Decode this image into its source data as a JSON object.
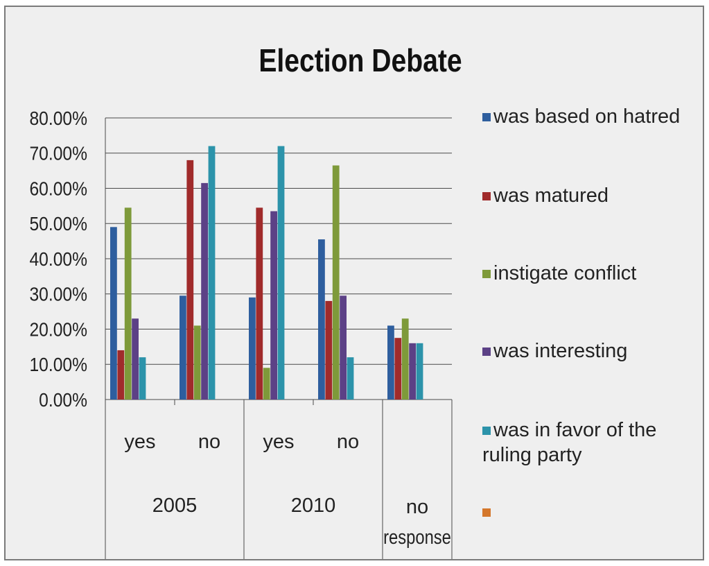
{
  "chart_data": {
    "type": "bar",
    "title": "Election Debate",
    "xlabel": "",
    "ylabel": "",
    "ylim": [
      0,
      0.8
    ],
    "yticks": [
      "0.00%",
      "10.00%",
      "20.00%",
      "30.00%",
      "40.00%",
      "50.00%",
      "60.00%",
      "70.00%",
      "80.00%"
    ],
    "grid": true,
    "legend_position": "right",
    "categories": [
      {
        "sub": "yes",
        "group": "2005"
      },
      {
        "sub": "no",
        "group": "2005"
      },
      {
        "sub": "yes",
        "group": "2010"
      },
      {
        "sub": "no",
        "group": "2010"
      },
      {
        "sub": "",
        "group": "no response"
      }
    ],
    "groups": [
      "2005",
      "2010",
      "no response"
    ],
    "series": [
      {
        "name": "was based on hatred",
        "color": "#2e5e9e",
        "values": [
          0.49,
          0.295,
          0.29,
          0.455,
          0.21
        ]
      },
      {
        "name": "was matured",
        "color": "#a02b2b",
        "values": [
          0.14,
          0.68,
          0.545,
          0.28,
          0.175
        ]
      },
      {
        "name": "instigate conflict",
        "color": "#7e9a3a",
        "values": [
          0.545,
          0.21,
          0.09,
          0.665,
          0.23
        ]
      },
      {
        "name": "was interesting",
        "color": "#5c4186",
        "values": [
          0.23,
          0.615,
          0.535,
          0.295,
          0.16
        ]
      },
      {
        "name": "was in favor of the ruling party",
        "color": "#2c93aa",
        "values": [
          0.12,
          0.72,
          0.72,
          0.12,
          0.16
        ]
      },
      {
        "name": "",
        "color": "#d4772b",
        "values": [
          0,
          0,
          0,
          0,
          0
        ]
      }
    ]
  }
}
